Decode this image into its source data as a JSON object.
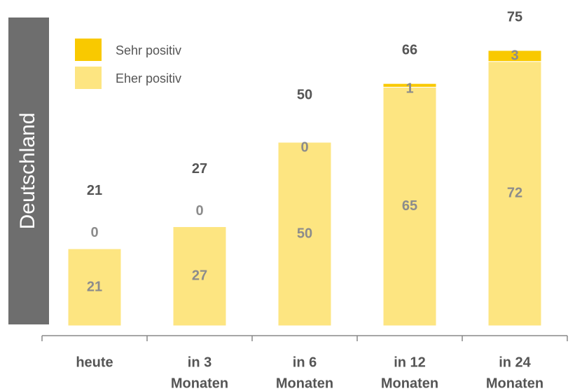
{
  "chart_data": {
    "type": "stacked_bar",
    "row_label": "Deutschland",
    "categories": [
      [
        "heute"
      ],
      [
        "in 3",
        "Monaten"
      ],
      [
        "in 6",
        "Monaten"
      ],
      [
        "in 12",
        "Monaten"
      ],
      [
        "in 24",
        "Monaten"
      ]
    ],
    "series": [
      {
        "name": "Eher positiv",
        "color": "#fde581",
        "values": [
          21,
          27,
          50,
          65,
          72
        ]
      },
      {
        "name": "Sehr positiv",
        "color": "#f9c900",
        "values": [
          0,
          0,
          0,
          1,
          3
        ]
      }
    ],
    "totals": [
      21,
      27,
      50,
      66,
      75
    ]
  }
}
